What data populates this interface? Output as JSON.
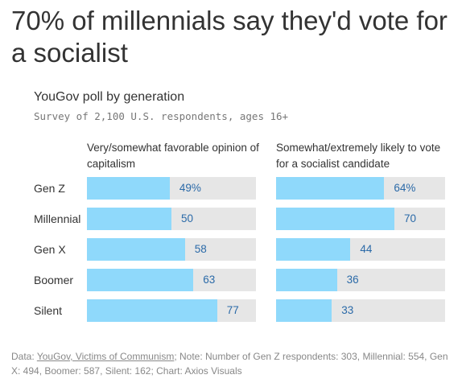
{
  "headline": "70% of millennials say they'd vote for a socialist",
  "chart_data": {
    "type": "bar",
    "title": "YouGov poll by generation",
    "subtitle": "Survey of 2,100 U.S. respondents, ages 16+",
    "categories": [
      "Gen Z",
      "Millennial",
      "Gen X",
      "Boomer",
      "Silent"
    ],
    "xlim": [
      0,
      100
    ],
    "grid": false,
    "series": [
      {
        "name": "Very/somewhat favorable opinion of capitalism",
        "values": [
          49,
          50,
          58,
          63,
          77
        ],
        "labels": [
          "49%",
          "50",
          "58",
          "63",
          "77"
        ]
      },
      {
        "name": "Somewhat/extremely likely to vote for a socialist candidate",
        "values": [
          64,
          70,
          44,
          36,
          33
        ],
        "labels": [
          "64%",
          "70",
          "44",
          "36",
          "33"
        ]
      }
    ],
    "colors": {
      "bar": "#8fd9fb",
      "track": "#e6e6e6",
      "label": "#2b6aa8"
    }
  },
  "footer": {
    "prefix": "Data: ",
    "source": "YouGov, Victims of Communism",
    "note": "; Note: Number of Gen Z respondents: 303, Millennial: 554, Gen X: 494, Boomer: 587, Silent: 162; Chart: Axios Visuals"
  }
}
